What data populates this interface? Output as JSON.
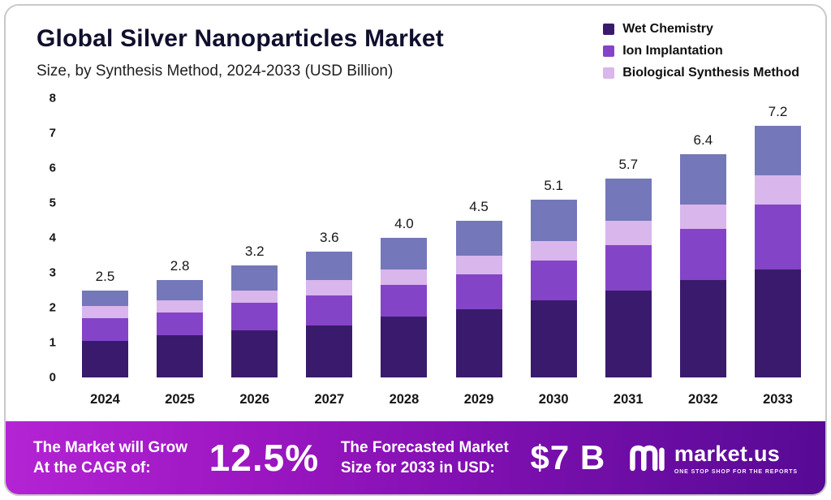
{
  "header": {
    "title": "Global Silver Nanoparticles Market",
    "subtitle": "Size, by Synthesis Method, 2024-2033 (USD Billion)"
  },
  "legend": [
    {
      "label": "Wet Chemistry",
      "color": "#3a1a6d"
    },
    {
      "label": "Ion Implantation",
      "color": "#8444c8"
    },
    {
      "label": "Biological Synthesis Method",
      "color": "#d9b6ec"
    }
  ],
  "chart_data": {
    "type": "bar",
    "stacked": true,
    "title": "Global Silver Nanoparticles Market Size, by Synthesis Method, 2024-2033 (USD Billion)",
    "categories": [
      "2024",
      "2025",
      "2026",
      "2027",
      "2028",
      "2029",
      "2030",
      "2031",
      "2032",
      "2033"
    ],
    "totals": [
      "2.5",
      "2.8",
      "3.2",
      "3.6",
      "4.0",
      "4.5",
      "5.1",
      "5.7",
      "6.4",
      "7.2"
    ],
    "series": [
      {
        "name": "Wet Chemistry",
        "color": "#3a1a6d",
        "values": [
          1.05,
          1.2,
          1.35,
          1.5,
          1.75,
          1.95,
          2.2,
          2.5,
          2.8,
          3.1
        ]
      },
      {
        "name": "Ion Implantation",
        "color": "#8444c8",
        "values": [
          0.65,
          0.65,
          0.8,
          0.85,
          0.9,
          1.0,
          1.15,
          1.3,
          1.45,
          1.85
        ]
      },
      {
        "name": "Biological Synthesis Method",
        "color": "#d9b6ec",
        "values": [
          0.35,
          0.35,
          0.35,
          0.45,
          0.45,
          0.55,
          0.55,
          0.7,
          0.7,
          0.85
        ]
      },
      {
        "name": "",
        "color": "#7477b9",
        "values": [
          0.45,
          0.6,
          0.7,
          0.8,
          0.9,
          1.0,
          1.2,
          1.2,
          1.45,
          1.4
        ]
      }
    ],
    "ylim": [
      0,
      8
    ],
    "yticks": [
      0,
      1,
      2,
      3,
      4,
      5,
      6,
      7,
      8
    ],
    "grid": false,
    "legend_position": "top-right"
  },
  "footer": {
    "cagr_label": "The Market will Grow\nAt the CAGR of:",
    "cagr_value": "12.5%",
    "forecast_label": "The Forecasted Market\nSize for 2033 in USD:",
    "forecast_value": "$7 B",
    "brand_name": "market.us",
    "brand_tagline": "ONE STOP SHOP FOR THE REPORTS"
  }
}
